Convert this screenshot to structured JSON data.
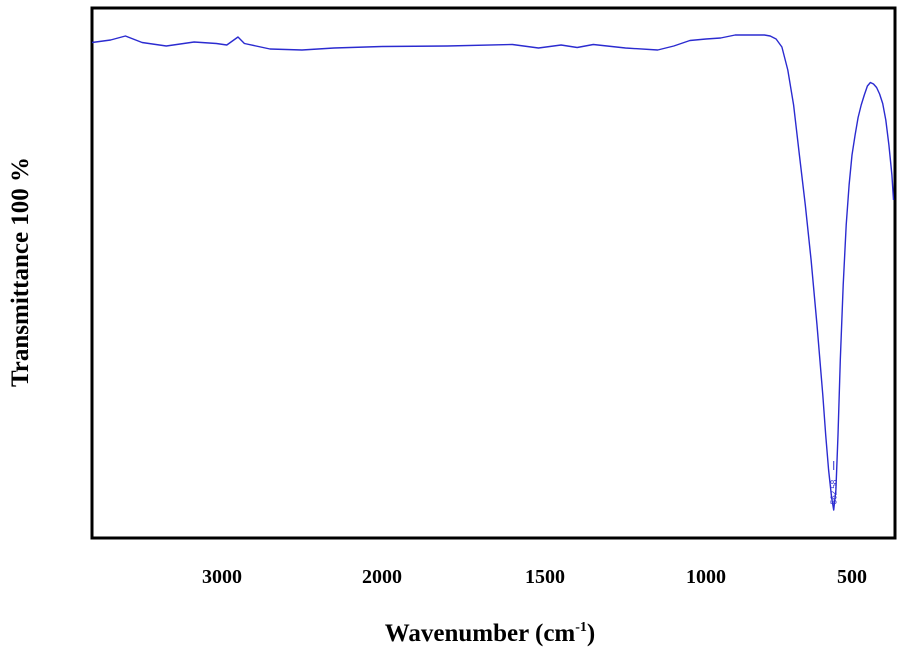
{
  "chart_data": {
    "type": "line",
    "title": "",
    "xlabel": "Wavenumber (cm",
    "xlabel_sup": "-1",
    "xlabel_suffix": ")",
    "ylabel": "Transmittance 100 %",
    "x_axis_reversed": true,
    "xlim": [
      3700,
      360
    ],
    "ylim": [
      0,
      100
    ],
    "grid": false,
    "legend": "none",
    "line_color": "#2b2bd0",
    "tick_labels": [
      {
        "value": 3000,
        "text": "3000"
      },
      {
        "value": 2000,
        "text": "2000"
      },
      {
        "value": 1500,
        "text": "1500"
      },
      {
        "value": 1000,
        "text": "1000"
      },
      {
        "value": 500,
        "text": "500"
      }
    ],
    "peak_annotation": {
      "x": 562.58,
      "text": "562.58"
    },
    "series": [
      {
        "x": [
          3700,
          3600,
          3520,
          3430,
          3300,
          3150,
          3030,
          2970,
          2900,
          2860,
          2700,
          2500,
          2300,
          2000,
          1800,
          1600,
          1520,
          1450,
          1400,
          1350,
          1250,
          1150,
          1100,
          1050,
          1000,
          950,
          900,
          850,
          800,
          780,
          760,
          740,
          720,
          700,
          680,
          660,
          640,
          620,
          600,
          590,
          580,
          570,
          562.58,
          555,
          548,
          540,
          530,
          520,
          510,
          500,
          490,
          480,
          470,
          460,
          450,
          440,
          430,
          420,
          410,
          400,
          390,
          380,
          370,
          365
        ],
        "y": [
          98.5,
          99.0,
          99.8,
          98.5,
          97.8,
          98.6,
          98.3,
          98.0,
          99.6,
          98.3,
          97.2,
          97.0,
          97.4,
          97.7,
          97.8,
          98.1,
          97.4,
          98.0,
          97.5,
          98.1,
          97.4,
          97.0,
          97.8,
          98.9,
          99.2,
          99.4,
          100.0,
          100.0,
          100.0,
          99.8,
          99.2,
          97.6,
          93.0,
          86.0,
          76.0,
          66.0,
          55.0,
          42.0,
          28.0,
          20.0,
          13.0,
          7.5,
          5.0,
          9.0,
          20.0,
          35.0,
          50.0,
          62.0,
          70.0,
          76.0,
          80.0,
          83.5,
          86.0,
          88.0,
          89.8,
          90.5,
          90.2,
          89.5,
          88.2,
          86.3,
          83.0,
          78.0,
          72.0,
          67.0
        ]
      }
    ]
  }
}
